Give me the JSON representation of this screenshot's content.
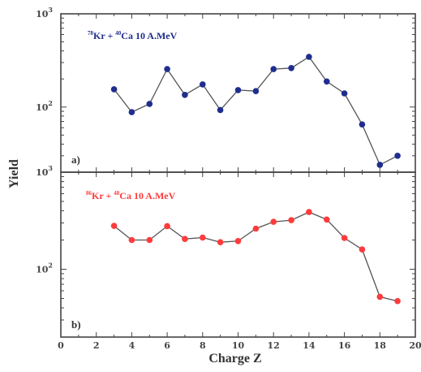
{
  "chart_data": {
    "type": "line",
    "scale": "log",
    "xlabel": "Charge Z",
    "ylabel": "Yield",
    "xlim": [
      0,
      20
    ],
    "x_ticks": [
      "0",
      "2",
      "4",
      "6",
      "8",
      "10",
      "12",
      "14",
      "16",
      "18",
      "20"
    ],
    "panels": [
      {
        "panel_label": "a)",
        "reaction": {
          "proj_mass": "78",
          "proj": "Kr + ",
          "targ_mass": "40",
          "targ": "Ca  10 A.MeV"
        },
        "color": "#1f2d8f",
        "ylim": [
          20,
          1000
        ],
        "y_ticks": [
          {
            "value": 1000,
            "base": "10",
            "exp": "3"
          },
          {
            "value": 100,
            "base": "10",
            "exp": "2"
          }
        ],
        "x": [
          3,
          4,
          5,
          6,
          7,
          8,
          9,
          10,
          11,
          12,
          13,
          14,
          15,
          16,
          17,
          18,
          19
        ],
        "y": [
          155,
          88,
          108,
          255,
          135,
          175,
          93,
          152,
          148,
          255,
          262,
          345,
          188,
          140,
          65,
          24,
          30
        ]
      },
      {
        "panel_label": "b)",
        "reaction": {
          "proj_mass": "86",
          "proj": "Kr + ",
          "targ_mass": "48",
          "targ": "Ca  10 A.MeV"
        },
        "color": "#ff3b3b",
        "ylim": [
          20,
          1000
        ],
        "y_ticks": [
          {
            "value": 1000,
            "base": "10",
            "exp": "3"
          },
          {
            "value": 100,
            "base": "10",
            "exp": "2"
          }
        ],
        "x": [
          3,
          4,
          5,
          6,
          7,
          8,
          9,
          10,
          11,
          12,
          13,
          14,
          15,
          16,
          17,
          18,
          19
        ],
        "y": [
          280,
          200,
          200,
          278,
          205,
          212,
          190,
          195,
          262,
          308,
          320,
          388,
          325,
          210,
          160,
          52,
          47
        ]
      }
    ]
  }
}
